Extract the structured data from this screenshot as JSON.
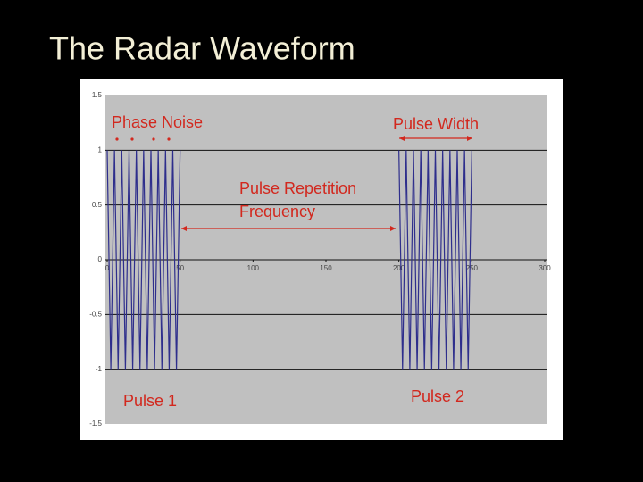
{
  "title": "The Radar Waveform",
  "chart_data": {
    "type": "line",
    "annotations": [
      "Phase Noise",
      "Pulse Width",
      "Pulse Repetition",
      "Frequency",
      "Pulse 1",
      "Pulse 2"
    ],
    "x": [
      0,
      2.5,
      5,
      7.5,
      10,
      12.5,
      15,
      17.5,
      20,
      22.5,
      25,
      27.5,
      30,
      32.5,
      35,
      37.5,
      40,
      42.5,
      45,
      47.5,
      50,
      125,
      200,
      202.5,
      205,
      207.5,
      210,
      212.5,
      215,
      217.5,
      220,
      222.5,
      225,
      227.5,
      230,
      232.5,
      235,
      237.5,
      240,
      242.5,
      245,
      247.5,
      250
    ],
    "series": [
      {
        "color": "#2e2e8c",
        "values": [
          1,
          -1,
          1,
          -1,
          1,
          -1,
          1,
          -1,
          1,
          -1,
          1,
          -1,
          1,
          -1,
          1,
          -1,
          1,
          -1,
          1,
          -1,
          1,
          null,
          1,
          -1,
          1,
          -1,
          1,
          -1,
          1,
          -1,
          1,
          -1,
          1,
          -1,
          1,
          -1,
          1,
          -1,
          1,
          -1,
          1,
          -1,
          1
        ]
      }
    ],
    "xlim": [
      0,
      300
    ],
    "xticks": [
      0,
      50,
      100,
      150,
      200,
      250,
      300
    ],
    "ylim": [
      -1.5,
      1.5
    ],
    "yticks": [
      -1.5,
      -1,
      -0.5,
      0,
      0.5,
      1,
      1.5
    ],
    "grid": true,
    "annotation_color": "#d2281e"
  }
}
